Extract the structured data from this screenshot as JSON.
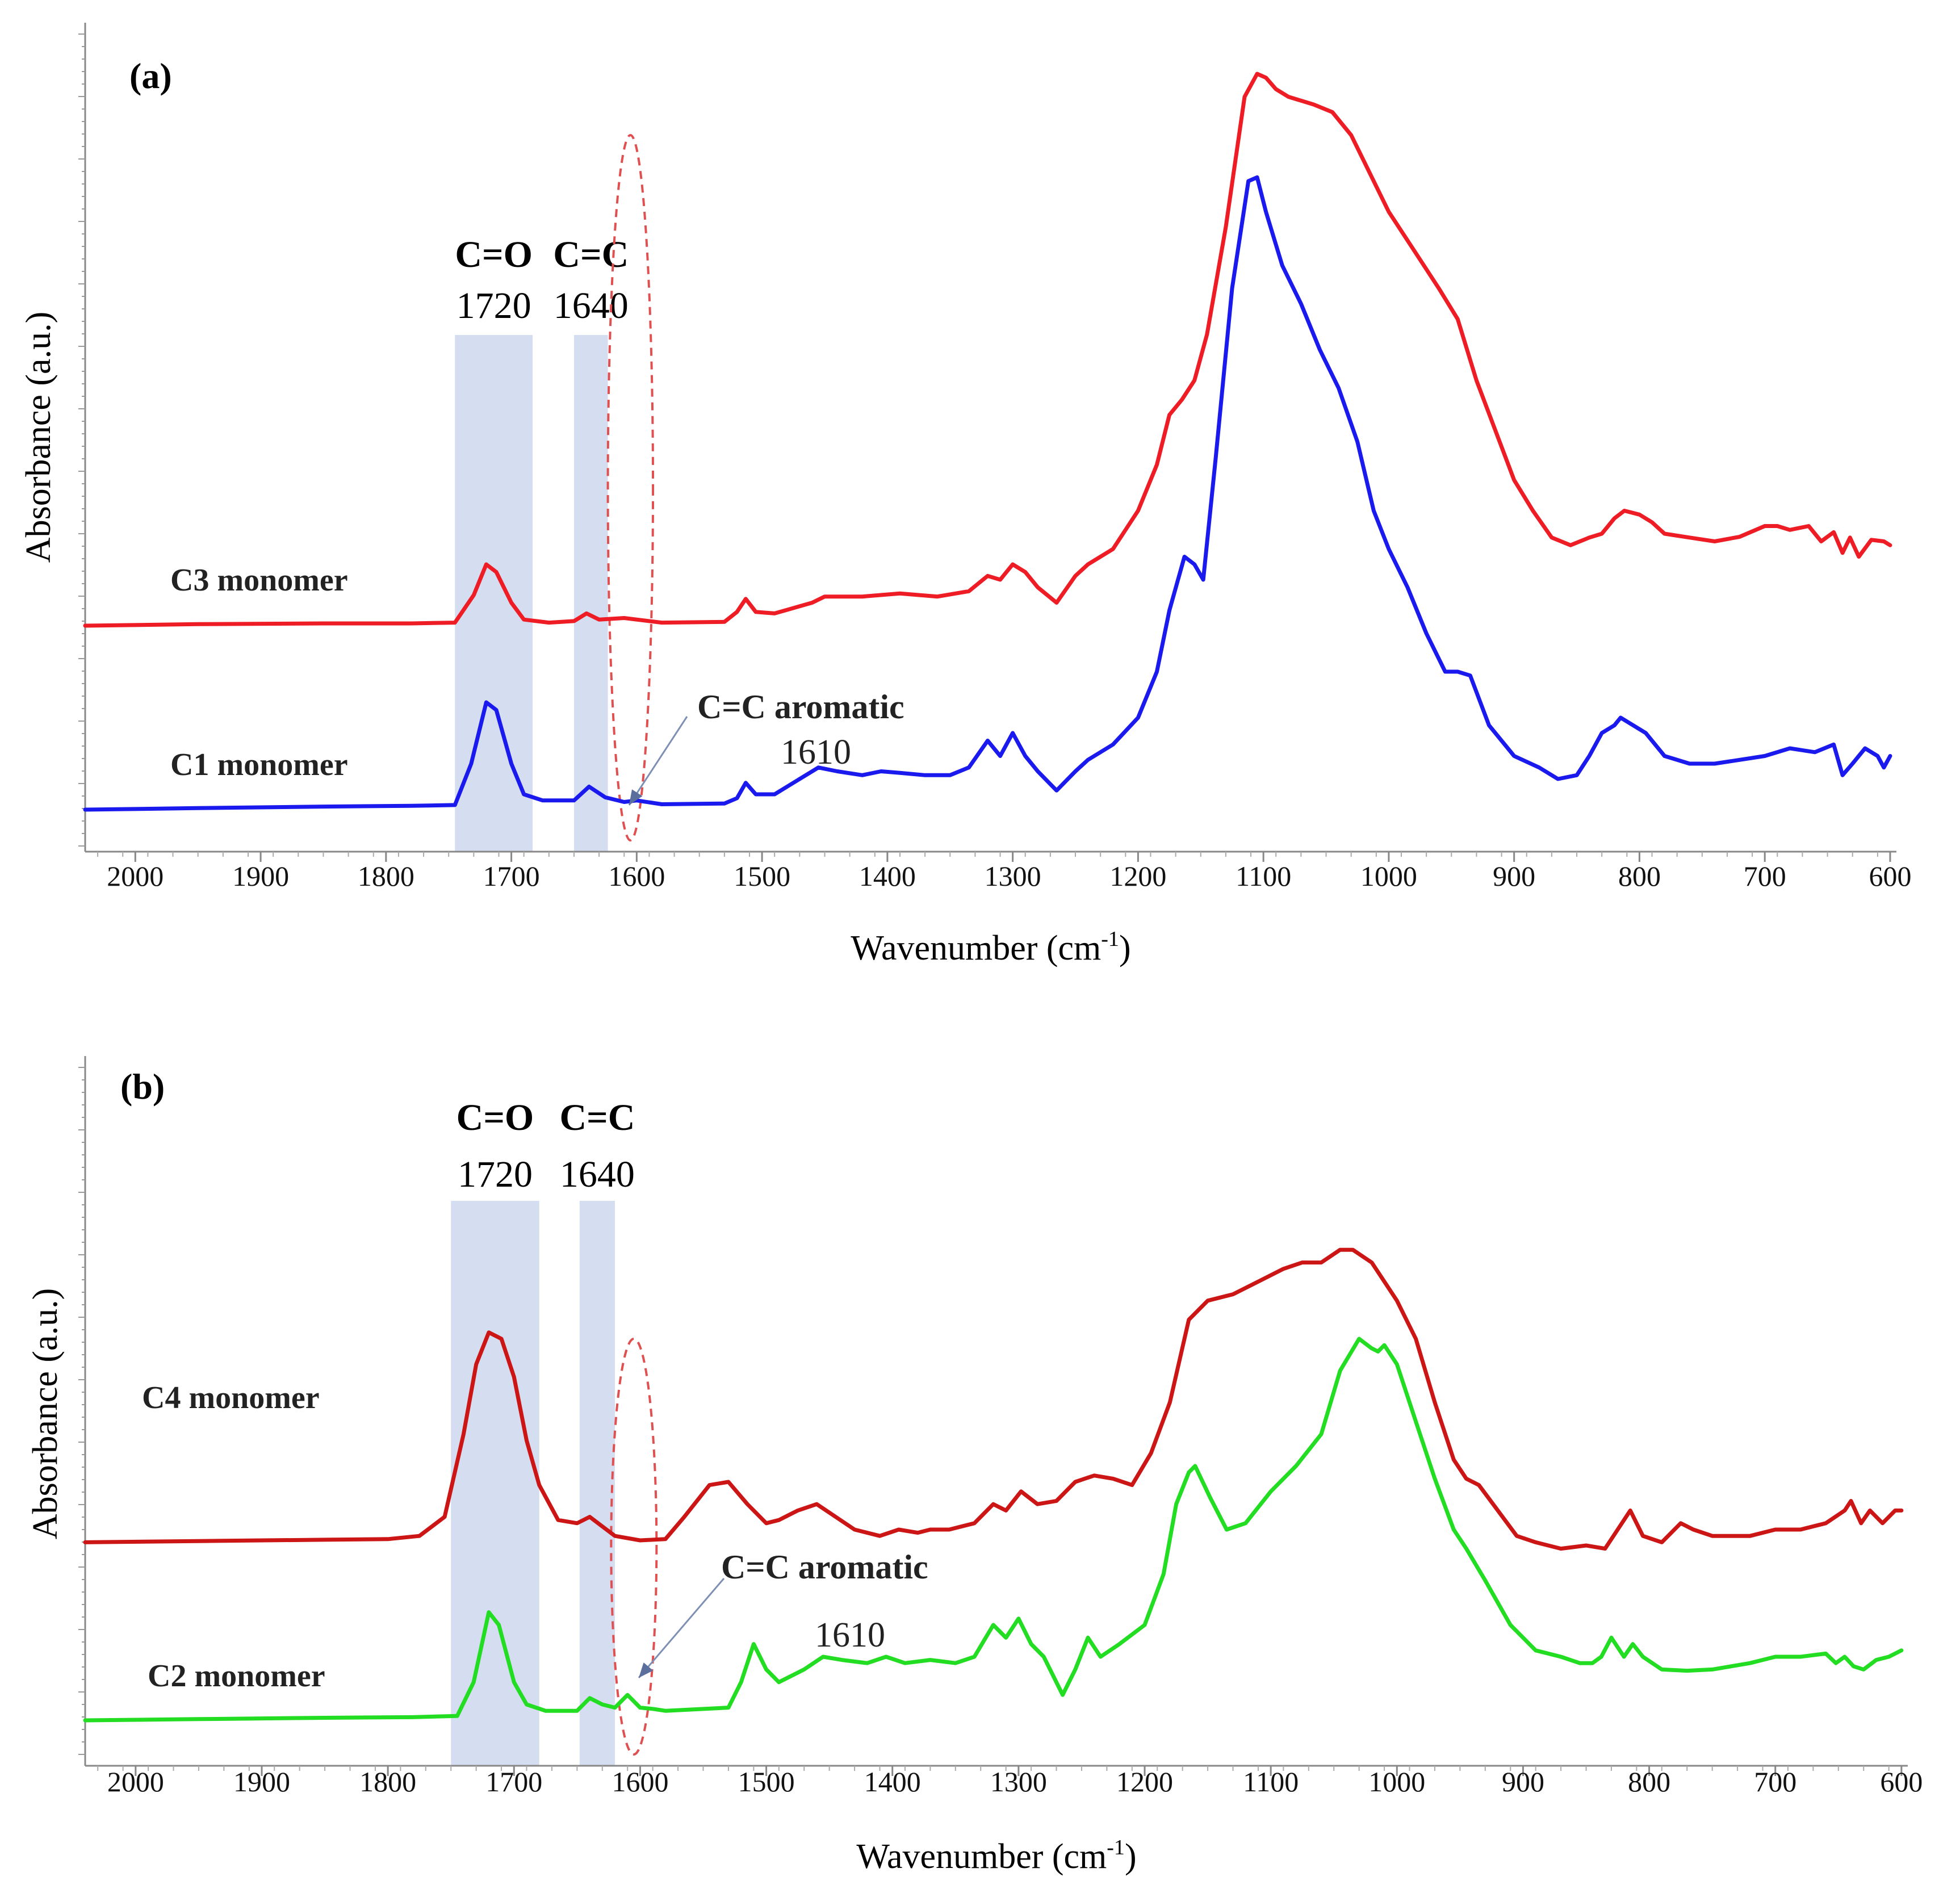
{
  "chart_data": [
    {
      "type": "line",
      "panel_label": "(a)",
      "xlabel": "Wavenumber (cm",
      "xlabel_sup": "-1",
      "xlabel_close": ")",
      "ylabel": "Absorbance (a.u.)",
      "xlim": [
        2040,
        595
      ],
      "x_reversed": true,
      "ylim": [
        0,
        1
      ],
      "y_ticks_labeled": false,
      "x_ticks": [
        2000,
        1900,
        1800,
        1700,
        1600,
        1500,
        1400,
        1300,
        1200,
        1100,
        1000,
        900,
        800,
        700,
        600
      ],
      "x_tick_labels": [
        "2000",
        "1900",
        "1800",
        "1700",
        "1600",
        "1500",
        "1400",
        "1300",
        "1200",
        "1100",
        "1000",
        "900",
        "800",
        "700",
        "600"
      ],
      "bands": [
        {
          "title": "C=O",
          "number": "1720",
          "from": 1745,
          "to": 1683
        },
        {
          "title": "C=C",
          "number": "1640",
          "from": 1650,
          "to": 1623
        }
      ],
      "highlight_region": {
        "center": 1605,
        "half_width": 18,
        "from_y": 0.0,
        "to_y": 0.92
      },
      "annotation": {
        "title": "C=C aromatic",
        "number": "1610",
        "target_x": 1605
      },
      "series": [
        {
          "name": "C3 monomer",
          "color": "#ee1c24",
          "x": [
            2040,
            1950,
            1850,
            1780,
            1745,
            1730,
            1720,
            1712,
            1700,
            1690,
            1670,
            1650,
            1640,
            1630,
            1610,
            1580,
            1530,
            1520,
            1513,
            1505,
            1490,
            1460,
            1450,
            1420,
            1390,
            1360,
            1335,
            1320,
            1310,
            1300,
            1290,
            1280,
            1265,
            1250,
            1240,
            1220,
            1200,
            1185,
            1175,
            1165,
            1155,
            1145,
            1130,
            1115,
            1105,
            1098,
            1090,
            1080,
            1060,
            1045,
            1030,
            1015,
            1000,
            980,
            960,
            945,
            930,
            900,
            885,
            870,
            855,
            840,
            830,
            820,
            812,
            800,
            790,
            780,
            760,
            740,
            720,
            700,
            690,
            680,
            665,
            655,
            645,
            638,
            632,
            625,
            615,
            605,
            600
          ],
          "y": [
            0.28,
            0.282,
            0.283,
            0.283,
            0.284,
            0.32,
            0.36,
            0.35,
            0.31,
            0.288,
            0.284,
            0.286,
            0.296,
            0.288,
            0.29,
            0.284,
            0.285,
            0.298,
            0.315,
            0.298,
            0.296,
            0.31,
            0.318,
            0.318,
            0.322,
            0.318,
            0.325,
            0.345,
            0.34,
            0.36,
            0.35,
            0.33,
            0.31,
            0.345,
            0.36,
            0.38,
            0.43,
            0.49,
            0.555,
            0.575,
            0.6,
            0.66,
            0.8,
            0.97,
            1.0,
            0.995,
            0.98,
            0.97,
            0.96,
            0.95,
            0.92,
            0.87,
            0.82,
            0.77,
            0.72,
            0.68,
            0.6,
            0.47,
            0.43,
            0.395,
            0.385,
            0.395,
            0.4,
            0.42,
            0.43,
            0.425,
            0.415,
            0.4,
            0.395,
            0.39,
            0.396,
            0.41,
            0.41,
            0.405,
            0.41,
            0.39,
            0.402,
            0.375,
            0.395,
            0.37,
            0.392,
            0.39,
            0.385
          ]
        },
        {
          "name": "C1 monomer",
          "color": "#1a1aee",
          "x": [
            2040,
            1950,
            1850,
            1780,
            1745,
            1732,
            1720,
            1712,
            1700,
            1690,
            1675,
            1650,
            1638,
            1625,
            1610,
            1600,
            1580,
            1530,
            1520,
            1513,
            1505,
            1490,
            1470,
            1455,
            1440,
            1420,
            1405,
            1390,
            1370,
            1350,
            1335,
            1320,
            1310,
            1300,
            1290,
            1280,
            1265,
            1250,
            1240,
            1220,
            1200,
            1185,
            1175,
            1163,
            1155,
            1148,
            1138,
            1125,
            1112,
            1105,
            1098,
            1085,
            1070,
            1055,
            1040,
            1025,
            1012,
            1000,
            985,
            970,
            955,
            945,
            935,
            920,
            900,
            880,
            865,
            850,
            840,
            830,
            820,
            815,
            805,
            795,
            780,
            760,
            740,
            720,
            700,
            680,
            660,
            645,
            638,
            630,
            620,
            610,
            605,
            600
          ],
          "y": [
            0.04,
            0.042,
            0.044,
            0.045,
            0.046,
            0.1,
            0.18,
            0.17,
            0.1,
            0.06,
            0.052,
            0.052,
            0.07,
            0.056,
            0.05,
            0.052,
            0.047,
            0.048,
            0.055,
            0.075,
            0.06,
            0.06,
            0.08,
            0.095,
            0.09,
            0.085,
            0.09,
            0.088,
            0.085,
            0.085,
            0.095,
            0.13,
            0.11,
            0.14,
            0.11,
            0.09,
            0.065,
            0.09,
            0.105,
            0.125,
            0.16,
            0.22,
            0.3,
            0.37,
            0.36,
            0.34,
            0.5,
            0.72,
            0.86,
            0.865,
            0.82,
            0.75,
            0.7,
            0.64,
            0.59,
            0.52,
            0.43,
            0.38,
            0.33,
            0.27,
            0.22,
            0.22,
            0.215,
            0.15,
            0.11,
            0.095,
            0.08,
            0.085,
            0.11,
            0.14,
            0.15,
            0.16,
            0.15,
            0.14,
            0.11,
            0.1,
            0.1,
            0.105,
            0.11,
            0.12,
            0.115,
            0.125,
            0.085,
            0.1,
            0.12,
            0.11,
            0.095,
            0.11
          ]
        }
      ]
    },
    {
      "type": "line",
      "panel_label": "(b)",
      "xlabel": "Wavenumber (cm",
      "xlabel_sup": "-1",
      "xlabel_close": ")",
      "ylabel": "Absorbance (a.u.)",
      "xlim": [
        2040,
        595
      ],
      "x_reversed": true,
      "ylim": [
        0,
        1
      ],
      "y_ticks_labeled": false,
      "x_ticks": [
        2000,
        1900,
        1800,
        1700,
        1600,
        1500,
        1400,
        1300,
        1200,
        1100,
        1000,
        900,
        800,
        700,
        600
      ],
      "x_tick_labels": [
        "2000",
        "1900",
        "1800",
        "1700",
        "1600",
        "1500",
        "1400",
        "1300",
        "1200",
        "1100",
        "1000",
        "900",
        "800",
        "700",
        "600"
      ],
      "bands": [
        {
          "title": "C=O",
          "number": "1720",
          "from": 1750,
          "to": 1680
        },
        {
          "title": "C=C",
          "number": "1640",
          "from": 1648,
          "to": 1620
        }
      ],
      "highlight_region": {
        "center": 1605,
        "half_width": 18,
        "from_y": 0.0,
        "to_y": 0.6
      },
      "annotation": {
        "title": "C=C aromatic",
        "number": "1610",
        "target_x": 1605
      },
      "series": [
        {
          "name": "C4 monomer",
          "color": "#cc1515",
          "x": [
            2040,
            1950,
            1850,
            1800,
            1775,
            1755,
            1740,
            1730,
            1720,
            1710,
            1700,
            1690,
            1680,
            1665,
            1650,
            1640,
            1630,
            1620,
            1600,
            1580,
            1565,
            1545,
            1530,
            1515,
            1500,
            1490,
            1475,
            1460,
            1445,
            1430,
            1410,
            1395,
            1380,
            1370,
            1355,
            1335,
            1320,
            1310,
            1298,
            1285,
            1270,
            1255,
            1240,
            1225,
            1210,
            1195,
            1180,
            1165,
            1150,
            1130,
            1110,
            1090,
            1075,
            1060,
            1045,
            1035,
            1020,
            1000,
            985,
            970,
            955,
            945,
            935,
            920,
            905,
            890,
            870,
            850,
            835,
            825,
            815,
            805,
            790,
            775,
            765,
            750,
            720,
            700,
            680,
            660,
            645,
            640,
            632,
            625,
            615,
            605,
            600
          ],
          "y": [
            0.28,
            0.282,
            0.284,
            0.285,
            0.29,
            0.32,
            0.45,
            0.56,
            0.61,
            0.6,
            0.54,
            0.44,
            0.37,
            0.315,
            0.31,
            0.32,
            0.305,
            0.29,
            0.283,
            0.285,
            0.32,
            0.37,
            0.375,
            0.34,
            0.31,
            0.315,
            0.33,
            0.34,
            0.32,
            0.3,
            0.29,
            0.3,
            0.295,
            0.3,
            0.3,
            0.31,
            0.34,
            0.33,
            0.36,
            0.34,
            0.345,
            0.375,
            0.385,
            0.38,
            0.37,
            0.42,
            0.5,
            0.63,
            0.66,
            0.67,
            0.69,
            0.71,
            0.72,
            0.72,
            0.74,
            0.74,
            0.72,
            0.66,
            0.6,
            0.5,
            0.41,
            0.38,
            0.37,
            0.33,
            0.29,
            0.28,
            0.27,
            0.275,
            0.27,
            0.3,
            0.33,
            0.29,
            0.28,
            0.31,
            0.3,
            0.29,
            0.29,
            0.3,
            0.3,
            0.31,
            0.33,
            0.345,
            0.31,
            0.33,
            0.31,
            0.33,
            0.33
          ]
        },
        {
          "name": "C2 monomer",
          "color": "#22dd22",
          "x": [
            2040,
            1950,
            1850,
            1780,
            1745,
            1732,
            1720,
            1712,
            1700,
            1690,
            1675,
            1650,
            1640,
            1630,
            1620,
            1610,
            1600,
            1590,
            1580,
            1530,
            1520,
            1510,
            1500,
            1490,
            1470,
            1455,
            1440,
            1420,
            1405,
            1390,
            1370,
            1350,
            1335,
            1320,
            1310,
            1300,
            1290,
            1280,
            1265,
            1255,
            1245,
            1235,
            1220,
            1200,
            1185,
            1175,
            1165,
            1160,
            1148,
            1135,
            1120,
            1100,
            1080,
            1060,
            1045,
            1030,
            1020,
            1015,
            1010,
            1000,
            985,
            970,
            955,
            945,
            930,
            910,
            890,
            870,
            855,
            845,
            838,
            830,
            820,
            813,
            805,
            790,
            770,
            750,
            720,
            700,
            680,
            660,
            652,
            645,
            638,
            630,
            620,
            610,
            600
          ],
          "y": [
            0.0,
            0.002,
            0.004,
            0.005,
            0.007,
            0.06,
            0.17,
            0.15,
            0.06,
            0.025,
            0.015,
            0.015,
            0.035,
            0.025,
            0.02,
            0.04,
            0.02,
            0.018,
            0.015,
            0.02,
            0.06,
            0.12,
            0.08,
            0.06,
            0.08,
            0.1,
            0.095,
            0.09,
            0.1,
            0.09,
            0.095,
            0.09,
            0.1,
            0.15,
            0.13,
            0.16,
            0.12,
            0.1,
            0.04,
            0.08,
            0.13,
            0.1,
            0.12,
            0.15,
            0.23,
            0.34,
            0.39,
            0.4,
            0.35,
            0.3,
            0.31,
            0.36,
            0.4,
            0.45,
            0.55,
            0.6,
            0.585,
            0.58,
            0.59,
            0.56,
            0.47,
            0.38,
            0.3,
            0.27,
            0.22,
            0.15,
            0.11,
            0.1,
            0.09,
            0.09,
            0.1,
            0.13,
            0.1,
            0.12,
            0.1,
            0.08,
            0.078,
            0.08,
            0.09,
            0.1,
            0.1,
            0.105,
            0.09,
            0.1,
            0.085,
            0.08,
            0.095,
            0.1,
            0.11
          ]
        }
      ]
    }
  ]
}
